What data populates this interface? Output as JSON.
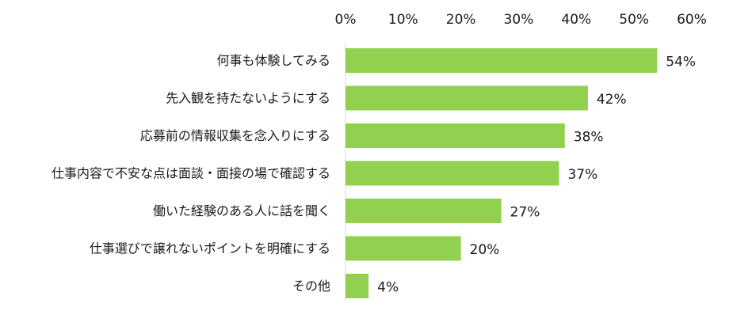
{
  "chart_data": {
    "type": "bar",
    "orientation": "horizontal",
    "title": "",
    "xlabel": "",
    "ylabel": "",
    "xlim": [
      0,
      60
    ],
    "ticks": [
      "0%",
      "10%",
      "20%",
      "30%",
      "40%",
      "50%",
      "60%"
    ],
    "tick_values": [
      0,
      10,
      20,
      30,
      40,
      50,
      60
    ],
    "x_axis_position": "top",
    "grid": false,
    "bar_color": "#92d050",
    "categories": [
      "何事も体験してみる",
      "先入観を持たないようにする",
      "応募前の情報収集を念入りにする",
      "仕事内容で不安な点は面談・面接の場で確認する",
      "働いた経験のある人に話を聞く",
      "仕事選びで譲れないポイントを明確にする",
      "その他"
    ],
    "values": [
      54,
      42,
      38,
      37,
      27,
      20,
      4
    ],
    "value_labels": [
      "54%",
      "42%",
      "38%",
      "37%",
      "27%",
      "20%",
      "4%"
    ]
  }
}
